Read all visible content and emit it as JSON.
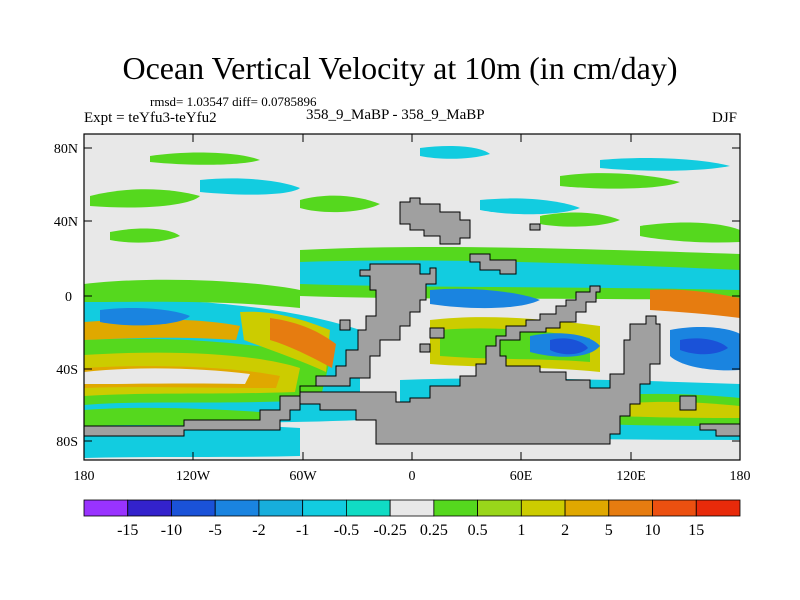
{
  "title": "Ocean Vertical Velocity at 10m (in cm/day)",
  "stats": "rmsd= 1.03547 diff= 0.0785896",
  "experiment": "Expt = teYfu3-teYfu2",
  "center_label": "358_9_MaBP - 358_9_MaBP",
  "season": "DJF",
  "y_ticks": [
    "80N",
    "40N",
    "0",
    "40S",
    "80S"
  ],
  "x_ticks": [
    "180",
    "120W",
    "60W",
    "0",
    "60E",
    "120E",
    "180"
  ],
  "colorbar": {
    "labels": [
      "-15",
      "-10",
      "-5",
      "-2",
      "-1",
      "-0.5",
      "-0.25",
      "0.25",
      "0.5",
      "1",
      "2",
      "5",
      "10",
      "15"
    ],
    "colors": [
      "#9933ff",
      "#3322cc",
      "#1a52d8",
      "#1a84e0",
      "#17aedc",
      "#12cce0",
      "#10dcc4",
      "#e8e8e8",
      "#55d81e",
      "#99d61a",
      "#cccc00",
      "#e0a800",
      "#e67c10",
      "#ec5010",
      "#e82a0a"
    ]
  },
  "colors": {
    "background_field": "#e8e8e8",
    "land": "#a0a0a0"
  }
}
